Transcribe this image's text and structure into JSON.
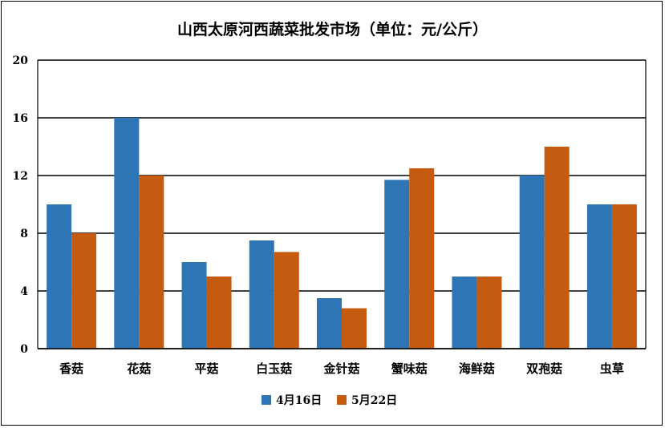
{
  "chart_data": {
    "type": "bar",
    "title": "山西太原河西蔬菜批发市场（单位：元/公斤）",
    "categories": [
      "香菇",
      "花菇",
      "平菇",
      "白玉菇",
      "金针菇",
      "蟹味菇",
      "海鲜菇",
      "双孢菇",
      "虫草"
    ],
    "series": [
      {
        "name": "4月16日",
        "color": "#2e75b6",
        "values": [
          10,
          16,
          6,
          7.5,
          3.5,
          11.7,
          5,
          12,
          10
        ]
      },
      {
        "name": "5月22日",
        "color": "#c55a11",
        "values": [
          8,
          12,
          5,
          6.7,
          2.8,
          12.5,
          5,
          14,
          10
        ]
      }
    ],
    "ylim": [
      0,
      20
    ],
    "yticks": [
      "0",
      "4",
      "8",
      "12",
      "16",
      "20"
    ],
    "grid": true,
    "legend_position": "bottom"
  }
}
